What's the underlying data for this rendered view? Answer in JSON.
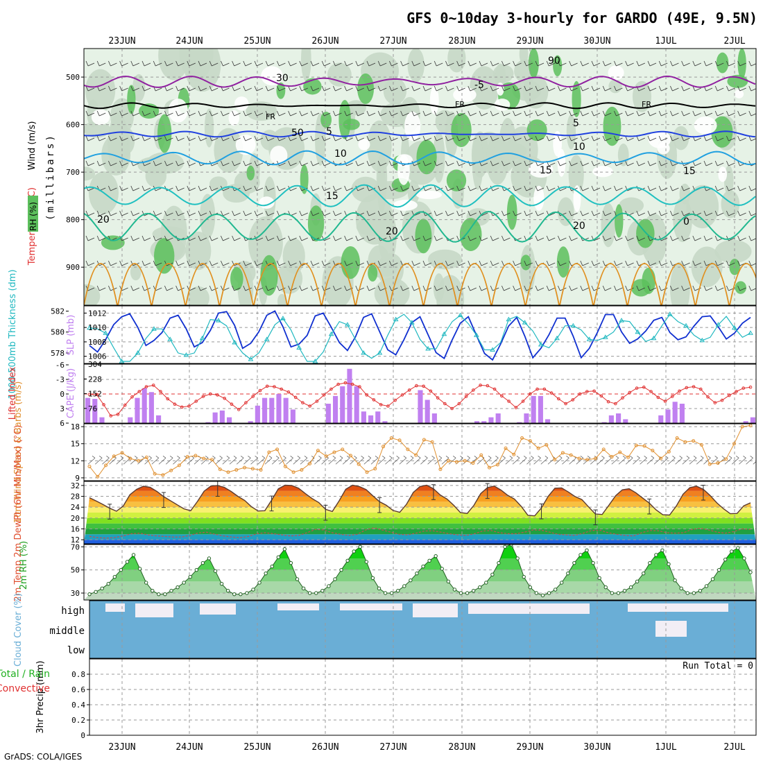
{
  "title": "GFS 0~10day 3-hourly for GARDO (49E, 9.5N)",
  "footer": "GrADS: COLA/IGES",
  "days": [
    "23JUN",
    "24JUN",
    "25JUN",
    "26JUN",
    "27JUN",
    "28JUN",
    "29JUN",
    "30JUN",
    "1JUL",
    "2JUL"
  ],
  "colors": {
    "rh_light": "#e6f2e6",
    "rh_mid": "#c6d8c6",
    "rh_green": "#5cbf5c",
    "temp_purple": "#9020a0",
    "temp_black": "#000000",
    "temp_blue": "#2040e0",
    "temp_sky": "#20a0e0",
    "temp_cyan": "#20c0c0",
    "temp_teal": "#20b890",
    "temp_orange": "#e09020",
    "slp": "#1030d0",
    "thickness": "#20b8c0",
    "lifted": "#e03030",
    "cape": "#c080f0",
    "wind10": "#e09030",
    "cloud": "#6aaed6",
    "cloud_clear": "#f2eef5"
  },
  "chart_data": [
    {
      "type": "heatmap",
      "panel": "upper-air",
      "ylabel_parts": [
        "Wind (m/s)",
        "Temperature (°C)",
        "RH (%)"
      ],
      "yaxis_label": "(millibars)",
      "ylim": [
        980,
        440
      ],
      "yticks": [
        500,
        600,
        700,
        800,
        900
      ],
      "contours": [
        {
          "label": "FR",
          "level_mb": 560,
          "color": "temp_black"
        },
        {
          "label": "-5",
          "level_mb": 510,
          "color": "temp_purple"
        },
        {
          "label": "5",
          "level_mb": 620,
          "color": "temp_blue"
        },
        {
          "label": "10",
          "level_mb": 670,
          "color": "temp_sky"
        },
        {
          "label": "15",
          "level_mb": 750,
          "color": "temp_cyan"
        },
        {
          "label": "20",
          "level_mb": 815,
          "color": "temp_teal"
        }
      ],
      "annotations": [
        "FR",
        "FR",
        "FR",
        "-5",
        "5",
        "5",
        "10",
        "10",
        "15",
        "15",
        "15",
        "20",
        "20",
        "20",
        "30",
        "50",
        "90",
        "0"
      ]
    },
    {
      "type": "line",
      "panel": "slp-thickness",
      "ylabel_left": "1000-500mb Thickness (dm)",
      "ylabel_right": "SLP (mb)",
      "yticks_left": [
        578,
        580,
        582
      ],
      "yticks_right": [
        1006,
        1008,
        1010,
        1012
      ],
      "ylim_right": [
        1005,
        1013
      ],
      "ylim_left": [
        577,
        582.5
      ],
      "series": [
        {
          "name": "SLP (mb)",
          "axis": "right",
          "values": [
            1007.5,
            1006.6,
            1008.3,
            1010.4,
            1011.5,
            1011.9,
            1010.0,
            1007.5,
            1008.2,
            1009.3,
            1011.3,
            1011.7,
            1009.8,
            1007.3,
            1007.9,
            1009.6,
            1012.0,
            1012.2,
            1010.3,
            1007.1,
            1007.8,
            1009.4,
            1011.7,
            1012.3,
            1010.1,
            1007.3,
            1007.7,
            1008.9,
            1011.6,
            1012.0,
            1010.0,
            1007.9,
            1006.8,
            1008.7,
            1011.4,
            1011.9,
            1009.4,
            1006.9,
            1006.2,
            1008.3,
            1010.7,
            1011.5,
            1009.0,
            1006.5,
            1005.7,
            1008.3,
            1010.6,
            1011.5,
            1008.9,
            1006.4,
            1005.5,
            1007.7,
            1010.2,
            1011.4,
            1008.8,
            1005.8,
            1007.1,
            1009.0,
            1011.3,
            1011.3,
            1008.8,
            1005.8,
            1007.1,
            1009.3,
            1011.8,
            1011.8,
            1009.4,
            1007.8,
            1008.4,
            1009.5,
            1011.0,
            1011.4,
            1009.3,
            1008.3,
            1008.7,
            1010.2,
            1011.5,
            1011.6,
            1010.1,
            1008.4,
            1009.2,
            1010.6,
            1011.4
          ]
        },
        {
          "name": "Thickness (dm)",
          "axis": "left",
          "values": [
            580.4,
            580.3,
            579.9,
            578.5,
            577.2,
            577.2,
            578.0,
            579.4,
            580.3,
            580.3,
            579.3,
            578.0,
            577.8,
            578.0,
            579.4,
            581.2,
            581.1,
            580.6,
            579.0,
            578.0,
            577.4,
            578.0,
            579.3,
            580.7,
            581.3,
            580.2,
            578.5,
            577.2,
            577.2,
            578.1,
            579.8,
            581.0,
            580.7,
            579.3,
            578.0,
            577.5,
            578.0,
            579.7,
            581.2,
            581.7,
            580.9,
            579.3,
            578.4,
            578.4,
            579.8,
            581.0,
            581.6,
            580.8,
            579.7,
            578.3,
            578.3,
            579.0,
            581.2,
            581.5,
            580.9,
            580.1,
            578.8,
            578.5,
            579.4,
            580.6,
            580.6,
            580.2,
            579.3,
            579.2,
            579.5,
            580.0,
            581.1,
            581.0,
            580.0,
            579.1,
            579.4,
            580.6,
            581.7,
            581.0,
            580.6,
            579.7,
            579.2,
            579.5,
            580.7,
            581.5,
            580.4,
            579.5,
            579.9
          ]
        }
      ]
    },
    {
      "type": "bar",
      "panel": "cape-lifted",
      "ylabel_left": "Lifted Index",
      "ylabel_right": "CAPE (J/kg)",
      "yticks_left": [
        "-6",
        "-3",
        "0",
        "3",
        "6"
      ],
      "yticks_right": [
        76,
        152,
        228,
        304
      ],
      "ylim_right": [
        0,
        304
      ],
      "series": [
        {
          "name": "CAPE (J/kg)",
          "values": [
            130,
            125,
            30,
            0,
            0,
            0,
            30,
            130,
            180,
            160,
            40,
            0,
            0,
            0,
            0,
            0,
            0,
            5,
            55,
            65,
            30,
            0,
            0,
            10,
            90,
            130,
            130,
            150,
            130,
            70,
            0,
            0,
            0,
            0,
            100,
            140,
            190,
            280,
            190,
            60,
            40,
            60,
            10,
            0,
            0,
            0,
            0,
            170,
            120,
            50,
            0,
            0,
            0,
            0,
            0,
            10,
            10,
            30,
            50,
            0,
            0,
            5,
            50,
            140,
            140,
            20,
            0,
            0,
            0,
            0,
            0,
            0,
            0,
            5,
            40,
            50,
            20,
            0,
            0,
            0,
            0,
            40,
            70,
            110,
            100,
            0,
            0,
            0,
            0,
            0,
            0,
            0,
            0,
            10,
            30
          ]
        },
        {
          "name": "Lifted Index",
          "values": [
            0.1,
            0.1,
            2.2,
            4.5,
            4.2,
            2.3,
            0.6,
            -0.5,
            -1.5,
            -1.8,
            -0.5,
            1.0,
            2.1,
            2.7,
            2.5,
            1.5,
            0.5,
            0.0,
            0.2,
            0.9,
            2.1,
            3.2,
            1.8,
            0.5,
            -0.7,
            -1.6,
            -1.5,
            -1.0,
            -0.4,
            0.7,
            1.8,
            2.5,
            1.5,
            0.2,
            -1.0,
            -2.0,
            -2.3,
            -2.0,
            -1.5,
            0.2,
            1.2,
            2.2,
            2.5,
            1.3,
            0.2,
            -0.8,
            -1.7,
            -1.6,
            -0.6,
            0.8,
            2.0,
            3.0,
            2.0,
            0.5,
            -0.8,
            -1.8,
            -1.7,
            -1.0,
            0.4,
            1.5,
            2.8,
            1.5,
            0.0,
            -1.0,
            -1.0,
            -0.2,
            1.0,
            2.0,
            1.2,
            0.0,
            -0.5,
            -0.6,
            0.4,
            1.6,
            2.0,
            0.8,
            -0.3,
            -1.2,
            -1.4,
            -0.5,
            0.7,
            1.5,
            0.5,
            -0.6,
            -1.3,
            -1.5,
            -1.0,
            0.6,
            1.8,
            1.3,
            0.3,
            -0.5,
            -1.2,
            -1.4
          ]
        }
      ]
    },
    {
      "type": "line",
      "panel": "wind10m",
      "ylabel": "10m Wind Speed & Barbs (m/s)",
      "yticks": [
        9,
        12,
        15,
        18
      ],
      "ylim": [
        8.5,
        18.5
      ],
      "series": [
        {
          "name": "10m Wind Speed",
          "values": [
            11.0,
            9.2,
            11.2,
            12.8,
            13.4,
            12.4,
            12.0,
            12.6,
            9.7,
            9.5,
            10.3,
            11.2,
            12.7,
            12.9,
            12.4,
            12.2,
            10.5,
            10.0,
            10.4,
            10.8,
            10.6,
            10.4,
            13.5,
            14.0,
            11.0,
            10.0,
            10.4,
            11.5,
            13.8,
            12.8,
            13.5,
            14.0,
            12.9,
            11.4,
            10.0,
            10.6,
            14.5,
            16.0,
            15.6,
            14.0,
            13.0,
            15.7,
            15.3,
            10.5,
            12.0,
            11.8,
            12.0,
            11.6,
            13.0,
            10.8,
            11.3,
            14.2,
            13.1,
            16.0,
            15.5,
            14.2,
            14.8,
            12.2,
            13.4,
            13.0,
            12.4,
            12.2,
            12.4,
            14.0,
            12.7,
            13.5,
            12.6,
            14.7,
            14.6,
            13.8,
            12.4,
            13.6,
            16.0,
            15.3,
            15.5,
            14.8,
            11.4,
            11.6,
            12.3,
            15.0,
            18.0,
            18.2
          ]
        }
      ]
    },
    {
      "type": "area",
      "panel": "temp2m",
      "ylabel": "2m Temp 2m DewPt (6hr Min/Max) (°C)",
      "yticks": [
        12,
        16,
        20,
        24,
        28,
        32
      ],
      "ylim": [
        10.5,
        33.5
      ],
      "series": [
        {
          "name": "2m Temp",
          "values": [
            27.5,
            26.3,
            25.0,
            23.6,
            22.5,
            24.4,
            28.6,
            30.6,
            31.7,
            31.3,
            29.8,
            27.9,
            26.4,
            24.9,
            23.4,
            22.7,
            26.1,
            29.9,
            31.8,
            32.0,
            31.3,
            29.8,
            28.0,
            26.5,
            24.2,
            22.6,
            22.7,
            26.6,
            30.8,
            32.1,
            32.0,
            31.0,
            29.0,
            27.2,
            25.7,
            23.2,
            22.4,
            26.3,
            30.6,
            32.1,
            31.6,
            30.5,
            28.2,
            26.0,
            24.7,
            22.8,
            22.1,
            25.1,
            29.4,
            31.6,
            32.1,
            30.8,
            28.5,
            27.0,
            24.7,
            22.0,
            21.7,
            24.7,
            29.0,
            31.2,
            31.8,
            30.3,
            28.4,
            27.0,
            24.3,
            21.0,
            20.8,
            23.7,
            28.0,
            31.0,
            31.1,
            29.6,
            27.9,
            26.8,
            24.1,
            21.5,
            21.3,
            24.7,
            28.2,
            30.4,
            30.8,
            29.3,
            27.4,
            25.5,
            23.0,
            21.2,
            21.1,
            24.4,
            28.8,
            31.2,
            31.7,
            30.6,
            28.3,
            25.6,
            23.4,
            21.6,
            21.7,
            24.5,
            25.6
          ]
        },
        {
          "name": "2m DewPt",
          "values": [
            13.2,
            12.8,
            12.6,
            12.8,
            13.4,
            14.2,
            14.4,
            13.8,
            13.4,
            13.2,
            13.0,
            13.0,
            13.6,
            14.5,
            14.8,
            14.0,
            13.4,
            13.0,
            12.8,
            13.2,
            14.2,
            14.6,
            14.2,
            13.8,
            13.4,
            13.6,
            14.6,
            15.8,
            15.6,
            14.6,
            14.0,
            13.6,
            14.0,
            15.6,
            16.4,
            15.6,
            14.8,
            14.0,
            13.8,
            14.4,
            15.2,
            15.3,
            14.8,
            14.2,
            13.8,
            13.6,
            14.2,
            15.2,
            15.4,
            14.6,
            14.2,
            14.2,
            14.8,
            15.6,
            15.5,
            14.8,
            14.0,
            13.8,
            13.6,
            14.4,
            15.4,
            15.5,
            14.6,
            14.0,
            13.6,
            13.4,
            14.6,
            15.4,
            15.3,
            14.6,
            14.4,
            14.6,
            15.8,
            16.2,
            15.6,
            14.8,
            14.4,
            15.0,
            16.0,
            15.8
          ]
        }
      ]
    },
    {
      "type": "area",
      "panel": "rh2m",
      "ylabel": "2m RH (%)",
      "yticks": [
        30,
        50,
        70
      ],
      "ylim": [
        24,
        72
      ],
      "series": [
        {
          "name": "2m RH",
          "values": [
            29,
            31,
            34,
            38,
            44,
            50,
            57,
            63,
            51,
            39,
            32,
            29,
            29,
            32,
            35,
            39,
            44,
            50,
            56,
            60,
            49,
            38,
            32,
            29,
            29,
            30,
            33,
            39,
            47,
            53,
            61,
            68,
            56,
            42,
            34,
            30,
            30,
            32,
            36,
            42,
            50,
            58,
            66,
            70,
            57,
            43,
            34,
            30,
            30,
            32,
            36,
            41,
            47,
            53,
            58,
            62,
            51,
            40,
            33,
            30,
            30,
            32,
            35,
            39,
            46,
            56,
            70,
            72,
            60,
            44,
            35,
            30,
            28,
            30,
            33,
            39,
            47,
            56,
            63,
            67,
            56,
            43,
            35,
            30,
            30,
            32,
            35,
            40,
            47,
            56,
            63,
            67,
            55,
            41,
            34,
            30,
            30,
            32,
            36,
            42,
            50,
            59,
            66,
            69,
            60,
            48
          ]
        }
      ]
    },
    {
      "type": "heatmap",
      "panel": "cloud",
      "ylabel": "Cloud Cover (%)",
      "levels": [
        "high",
        "middle",
        "low"
      ]
    },
    {
      "type": "bar",
      "panel": "precip",
      "ylabel": "3hr Precip (mm)",
      "legend": [
        "Total / Rain",
        "Convective"
      ],
      "yticks": [
        "0",
        "0.2",
        "0.4",
        "0.6",
        "0.8"
      ],
      "ylim": [
        0,
        1
      ],
      "run_total": "Run Total = 0",
      "series": [
        {
          "name": "Total / Rain",
          "values": []
        }
      ]
    }
  ]
}
